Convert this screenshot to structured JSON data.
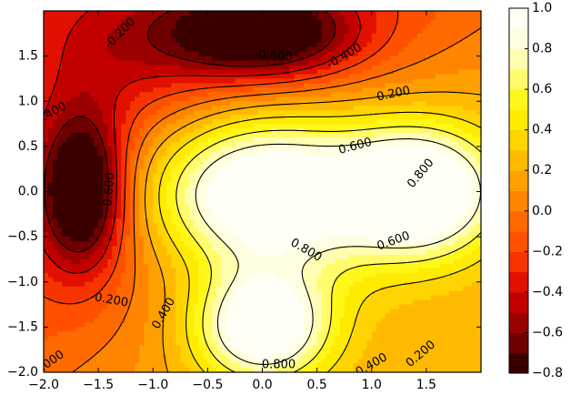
{
  "chart_data": {
    "type": "contour",
    "title": "",
    "xlabel": "",
    "ylabel": "",
    "xlim": [
      -2.0,
      2.0
    ],
    "ylim": [
      -2.0,
      2.0
    ],
    "xticks": [
      "−2.0",
      "−1.5",
      "−1.0",
      "−0.5",
      "0.0",
      "0.5",
      "1.0",
      "1.5"
    ],
    "xtick_values": [
      -2.0,
      -1.5,
      -1.0,
      -0.5,
      0.0,
      0.5,
      1.0,
      1.5
    ],
    "yticks": [
      "−2.0",
      "−1.5",
      "−1.0",
      "−0.5",
      "0.0",
      "0.5",
      "1.0",
      "1.5"
    ],
    "ytick_values": [
      -2.0,
      -1.5,
      -1.0,
      -0.5,
      0.0,
      0.5,
      1.0,
      1.5
    ],
    "grid": false,
    "colormap": "hot",
    "fill_levels": [
      -0.8,
      -0.7,
      -0.6,
      -0.5,
      -0.4,
      -0.3,
      -0.2,
      -0.1,
      0.0,
      0.1,
      0.2,
      0.3,
      0.4,
      0.5,
      0.6,
      0.7,
      0.8,
      0.9,
      1.0
    ],
    "fill_colors": [
      "#3a0000",
      "#6e0000",
      "#9a0000",
      "#c20000",
      "#e21000",
      "#f53400",
      "#ff5000",
      "#ff6a00",
      "#ff8400",
      "#ffa000",
      "#ffba00",
      "#ffd400",
      "#ffeb00",
      "#fff71a",
      "#fffb6a",
      "#fffdb0",
      "#fffee0",
      "#fffff5"
    ],
    "line_levels": [
      -0.6,
      -0.4,
      -0.2,
      0.0,
      0.2,
      0.4,
      0.6,
      0.8
    ],
    "negative_linestyle": "dashed",
    "contour_labels": [
      {
        "text": "-0.200",
        "x": -1.3,
        "y": 1.75,
        "angle": -45
      },
      {
        "text": "-0.600",
        "x": 0.1,
        "y": 1.5,
        "angle": 5
      },
      {
        "text": "-0.400",
        "x": 0.75,
        "y": 1.5,
        "angle": -30
      },
      {
        "text": "-0.400",
        "x": -1.95,
        "y": 0.85,
        "angle": -30
      },
      {
        "text": "-0.600",
        "x": -1.4,
        "y": 0.0,
        "angle": -85
      },
      {
        "text": "-0.200",
        "x": -1.4,
        "y": -1.2,
        "angle": 10
      },
      {
        "text": "0.200",
        "x": 1.2,
        "y": 1.08,
        "angle": -12
      },
      {
        "text": "0.600",
        "x": 0.85,
        "y": 0.5,
        "angle": -15
      },
      {
        "text": "0.800",
        "x": 1.45,
        "y": 0.2,
        "angle": -50
      },
      {
        "text": "0.800",
        "x": 0.4,
        "y": -0.65,
        "angle": 30
      },
      {
        "text": "0.600",
        "x": 1.2,
        "y": -0.55,
        "angle": -20
      },
      {
        "text": "0.400",
        "x": -0.9,
        "y": -1.35,
        "angle": -60
      },
      {
        "text": "0.800",
        "x": 0.15,
        "y": -1.92,
        "angle": 0
      },
      {
        "text": "0.400",
        "x": 1.0,
        "y": -1.92,
        "angle": -30
      },
      {
        "text": "0.200",
        "x": 1.45,
        "y": -1.8,
        "angle": -40
      },
      {
        "text": "0.000",
        "x": -1.95,
        "y": -1.9,
        "angle": -35
      }
    ],
    "colorbar": {
      "ticks": [
        "1.0",
        "0.8",
        "0.6",
        "0.4",
        "0.2",
        "0.0",
        "−0.2",
        "−0.4",
        "−0.6",
        "−0.8"
      ],
      "tick_values": [
        1.0,
        0.8,
        0.6,
        0.4,
        0.2,
        0.0,
        -0.2,
        -0.4,
        -0.6,
        -0.8
      ]
    }
  }
}
